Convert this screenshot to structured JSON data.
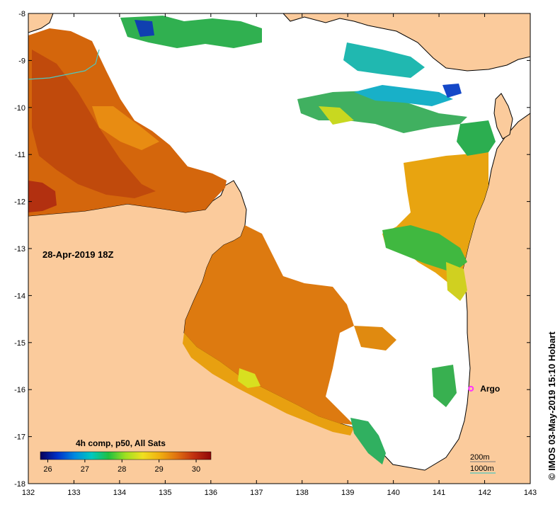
{
  "map": {
    "date_label": "28-Apr-2019 18Z",
    "credit": "© IMOS 03-May-2019 15:10 Hobart",
    "colors": {
      "land": "#fbcb9c",
      "nodata": "#ffffff",
      "contour_200m": "#7a7a7a",
      "contour_1000m": "#4fc8c0",
      "argo": "#ff33ff"
    },
    "lat_axis": {
      "ticks": [
        "-8",
        "-9",
        "-10",
        "-11",
        "-12",
        "-13",
        "-14",
        "-15",
        "-16",
        "-17",
        "-18"
      ],
      "range": [
        -18,
        -8
      ]
    },
    "lon_axis": {
      "ticks": [
        "132",
        "133",
        "134",
        "135",
        "136",
        "137",
        "138",
        "139",
        "140",
        "141",
        "142",
        "143"
      ],
      "range": [
        132,
        143
      ]
    },
    "colorbar": {
      "title": "4h comp, p50, All Sats",
      "ticks": [
        "26",
        "27",
        "28",
        "29",
        "30"
      ],
      "range": [
        25.8,
        30.4
      ],
      "stops": [
        "#08005a",
        "#0030c8",
        "#0088e0",
        "#00c8c0",
        "#20c040",
        "#a0e020",
        "#f0e020",
        "#f0b010",
        "#e07010",
        "#c03010",
        "#900808"
      ]
    },
    "legend": {
      "contour_200m": "200m",
      "contour_1000m": "1000m"
    },
    "argo": {
      "label": "Argo",
      "lon": 141.7,
      "lat": -15.98
    }
  }
}
